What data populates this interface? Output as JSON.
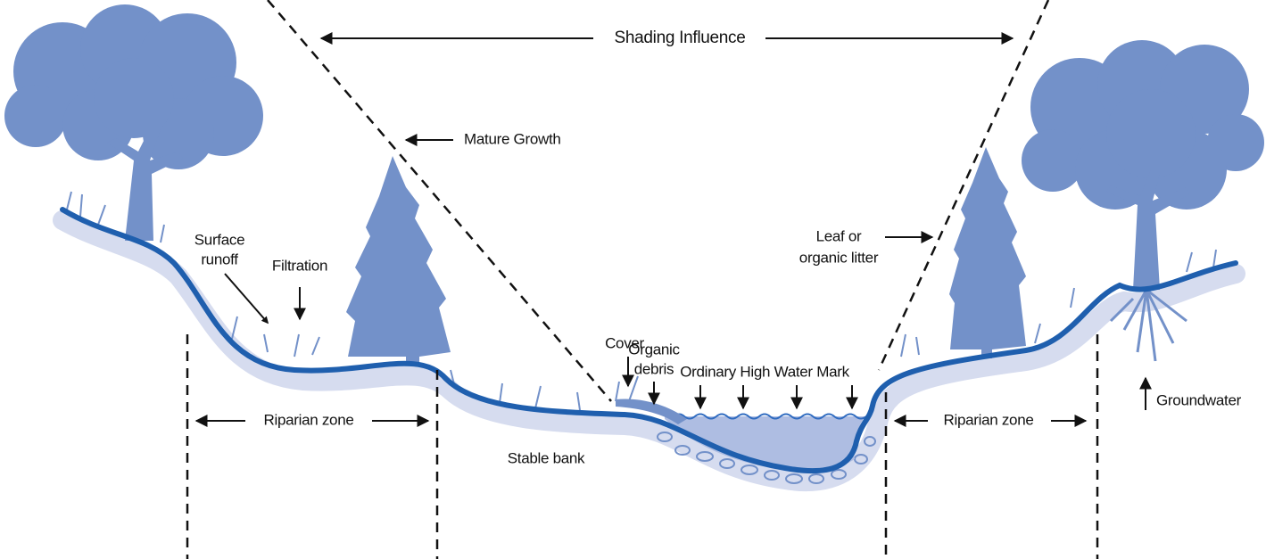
{
  "labels": {
    "shading_influence": "Shading Influence",
    "mature_growth": "Mature Growth",
    "surface_runoff": [
      "Surface",
      "runoff"
    ],
    "filtration": "Filtration",
    "organic_debris": [
      "Organic",
      "debris"
    ],
    "cover": "Cover",
    "ordinary_high_water_mark": "Ordinary High Water Mark",
    "leaf_litter": [
      "Leaf or",
      "organic litter"
    ],
    "riparian_zone_left": "Riparian zone",
    "riparian_zone_right": "Riparian zone",
    "stable_bank": "Stable bank",
    "groundwater": "Groundwater"
  }
}
